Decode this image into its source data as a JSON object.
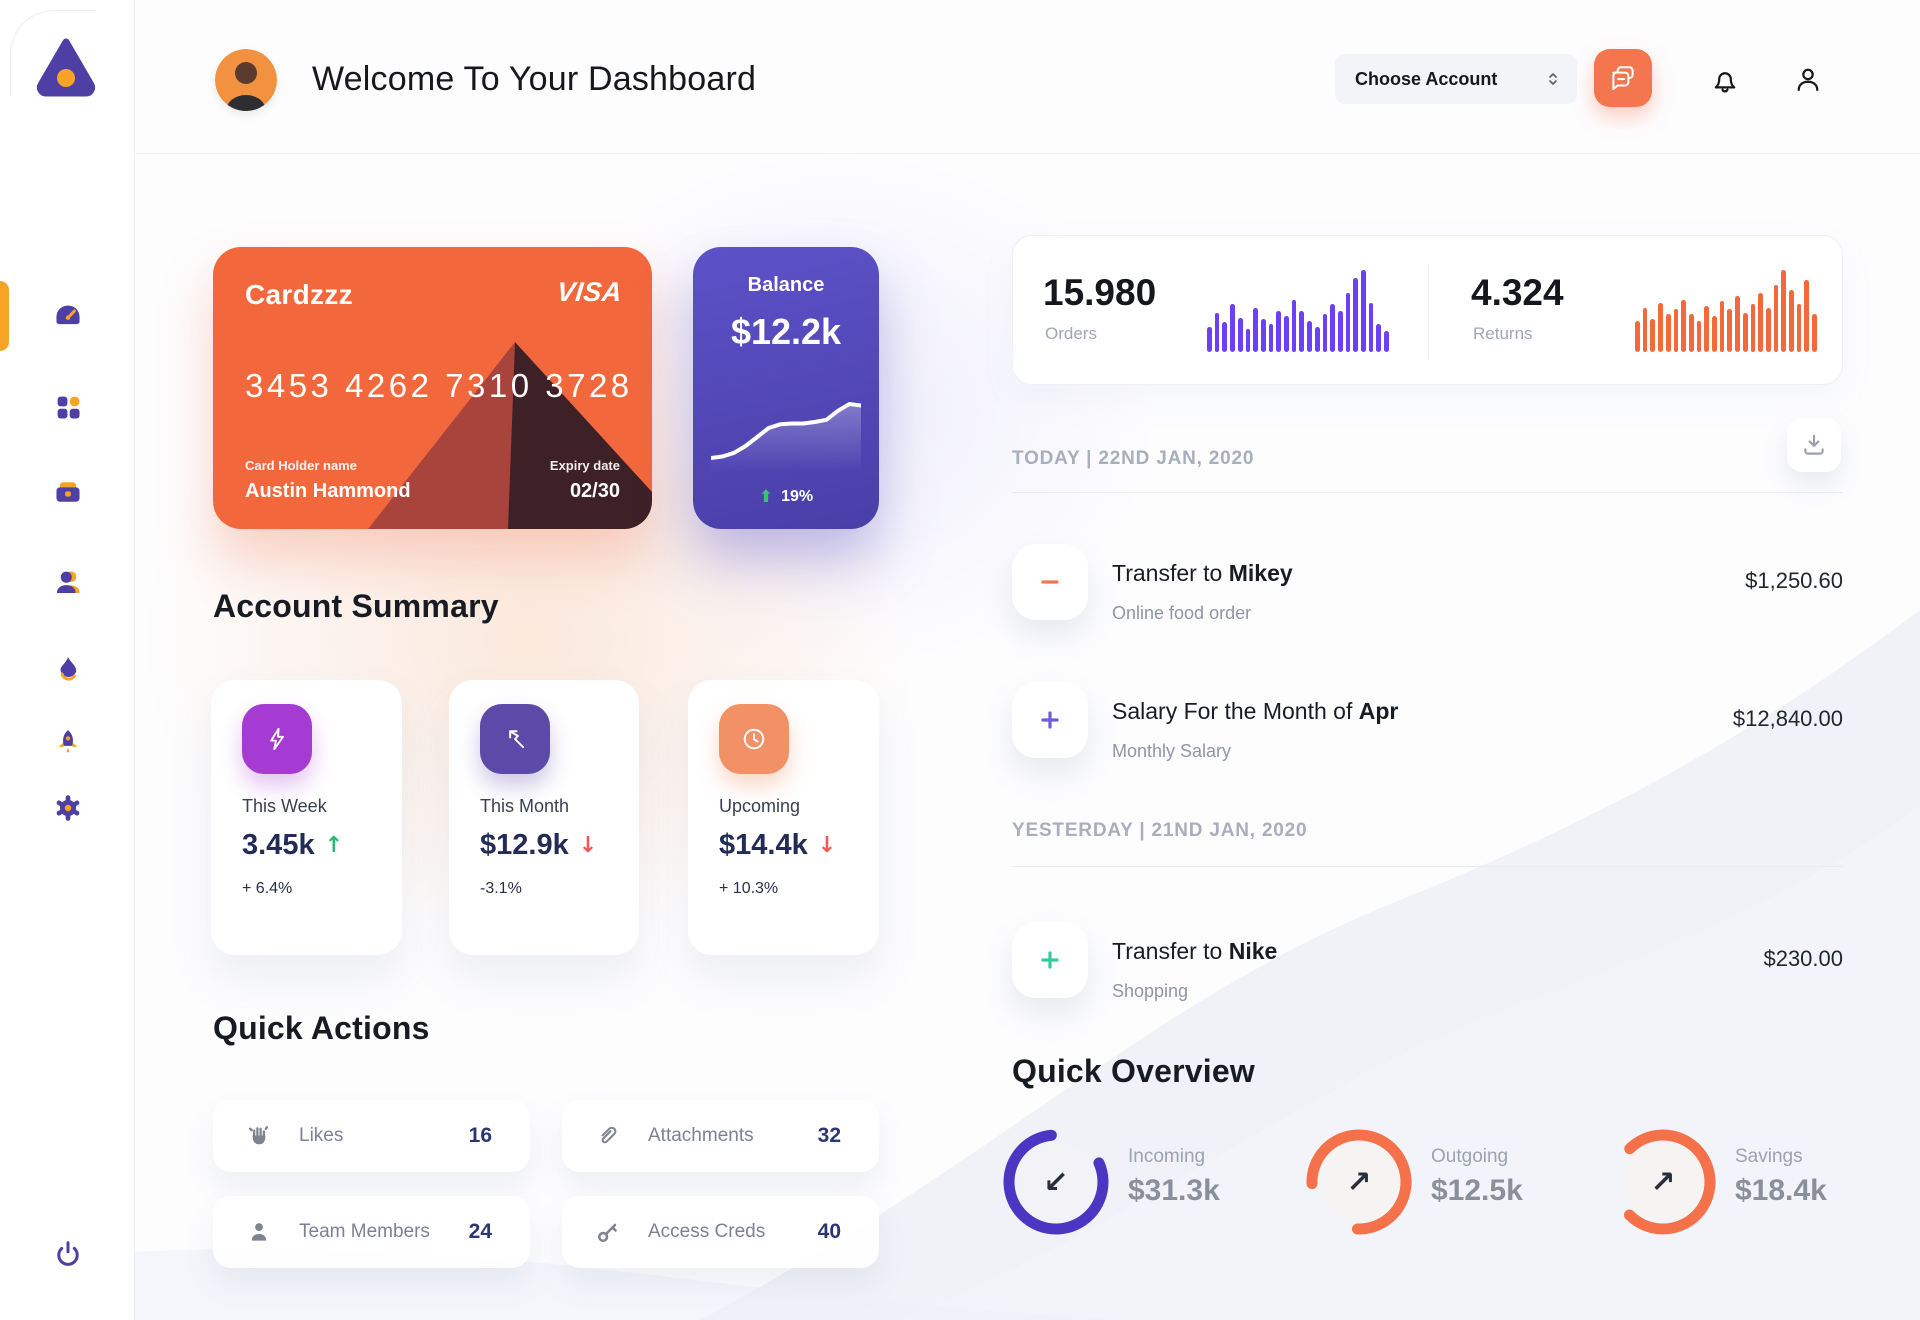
{
  "header": {
    "title": "Welcome To Your Dashboard",
    "account_selector_label": "Choose Account",
    "icons": [
      "chat-icon",
      "bell-icon",
      "profile-icon"
    ]
  },
  "sidebar": {
    "logo_icon": "triangle-logo",
    "items": [
      {
        "icon": "gauge-icon",
        "active": true
      },
      {
        "icon": "grid-icon",
        "active": false
      },
      {
        "icon": "briefcase-icon",
        "active": false
      },
      {
        "icon": "user-icon",
        "active": false
      },
      {
        "icon": "flame-icon",
        "active": false
      },
      {
        "icon": "rocket-icon",
        "active": false
      },
      {
        "icon": "gear-icon",
        "active": false
      }
    ],
    "bottom_icon": "power-icon",
    "accent_orange": "#F7A325",
    "accent_purple": "#4D3FA3"
  },
  "wallet_card": {
    "name": "Cardzzz",
    "brand": "VISA",
    "number": "3453 4262 7310 3728",
    "holder_label": "Card Holder name",
    "holder": "Austin Hammond",
    "expiry_label": "Expiry date",
    "expiry": "02/30",
    "bg_color": "#F2683C"
  },
  "balance_card": {
    "label": "Balance",
    "value": "$12.2k",
    "change_percent": "19%",
    "bg_color": "#554CBE",
    "change_arrow": "⬆"
  },
  "stats_card": {
    "orders_value": "15.980",
    "orders_label": "Orders",
    "returns_value": "4.324",
    "returns_label": "Returns"
  },
  "account_summary": {
    "title": "Account Summary",
    "cards": [
      {
        "icon": "lightning-icon",
        "tile_color": "#A63BD4",
        "label": "This Week",
        "value": "3.45k",
        "arrow": "↑",
        "trend_color": "#2BB673",
        "change": "+ 6.4%"
      },
      {
        "icon": "trend-arrow-icon",
        "tile_color": "#5B4AA8",
        "label": "This Month",
        "value": "$12.9k",
        "arrow": "↓",
        "trend_color": "#F05A5A",
        "change": "-3.1%"
      },
      {
        "icon": "clock-icon",
        "tile_color": "#F29066",
        "label": "Upcoming",
        "value": "$14.4k",
        "arrow": "↓",
        "trend_color": "#F05A5A",
        "change": "+ 10.3%"
      }
    ]
  },
  "quick_actions": {
    "title": "Quick Actions",
    "items": [
      {
        "icon": "clap-icon",
        "label": "Likes",
        "count": "16"
      },
      {
        "icon": "paperclip-icon",
        "label": "Attachments",
        "count": "32"
      },
      {
        "icon": "member-icon",
        "label": "Team Members",
        "count": "24"
      },
      {
        "icon": "key-icon",
        "label": "Access Creds",
        "count": "40"
      }
    ]
  },
  "transactions": {
    "today_heading": "TODAY | 22ND JAN, 2020",
    "yesterday_heading": "YESTERDAY | 21ND JAN, 2020",
    "download_icon": "download-icon",
    "rows": [
      {
        "icon": "minus-icon",
        "icon_color": "#F4764F",
        "title_prefix": "Transfer to ",
        "title_bold": "Mikey",
        "subtitle": "Online food order",
        "amount": "$1,250.60"
      },
      {
        "icon": "plus-icon",
        "icon_color": "#6F5CD9",
        "title_prefix": "Salary For the Month of ",
        "title_bold": "Apr",
        "subtitle": "Monthly Salary",
        "amount": "$12,840.00"
      },
      {
        "icon": "plus-icon",
        "icon_color": "#35C9A2",
        "title_prefix": "Transfer to ",
        "title_bold": "Nike",
        "subtitle": "Shopping",
        "amount": "$230.00"
      }
    ]
  },
  "quick_overview": {
    "title": "Quick Overview",
    "items": [
      {
        "label": "Incoming",
        "value": "$31.3k",
        "arrow": "↙",
        "color": "#4A36C2",
        "percent": 80
      },
      {
        "label": "Outgoing",
        "value": "$12.5k",
        "arrow": "↗",
        "color": "#F4714A",
        "percent": 76
      },
      {
        "label": "Savings",
        "value": "$18.4k",
        "arrow": "↗",
        "color": "#F4714A",
        "percent": 75
      }
    ]
  },
  "chart_data": [
    {
      "type": "bar",
      "name": "orders-mini-bars",
      "color": "#6C40F6",
      "values": [
        30,
        48,
        36,
        58,
        42,
        28,
        54,
        40,
        34,
        50,
        44,
        64,
        50,
        38,
        30,
        46,
        58,
        50,
        72,
        90,
        100,
        60,
        34,
        26
      ]
    },
    {
      "type": "bar",
      "name": "returns-mini-bars",
      "color": "#F4693C",
      "values": [
        38,
        54,
        40,
        60,
        46,
        52,
        64,
        46,
        38,
        56,
        44,
        62,
        52,
        68,
        48,
        58,
        72,
        54,
        82,
        100,
        76,
        58,
        88,
        46
      ]
    },
    {
      "type": "line",
      "name": "balance-trend",
      "color": "#FFFFFF",
      "values": [
        12,
        14,
        19,
        28,
        40,
        52,
        57,
        58,
        58,
        60,
        63,
        75,
        84,
        82
      ]
    },
    {
      "type": "donut",
      "name": "quick-overview-gauges",
      "series": [
        {
          "name": "Incoming",
          "value": "$31.3k",
          "percent": 80
        },
        {
          "name": "Outgoing",
          "value": "$12.5k",
          "percent": 76
        },
        {
          "name": "Savings",
          "value": "$18.4k",
          "percent": 75
        }
      ]
    }
  ]
}
